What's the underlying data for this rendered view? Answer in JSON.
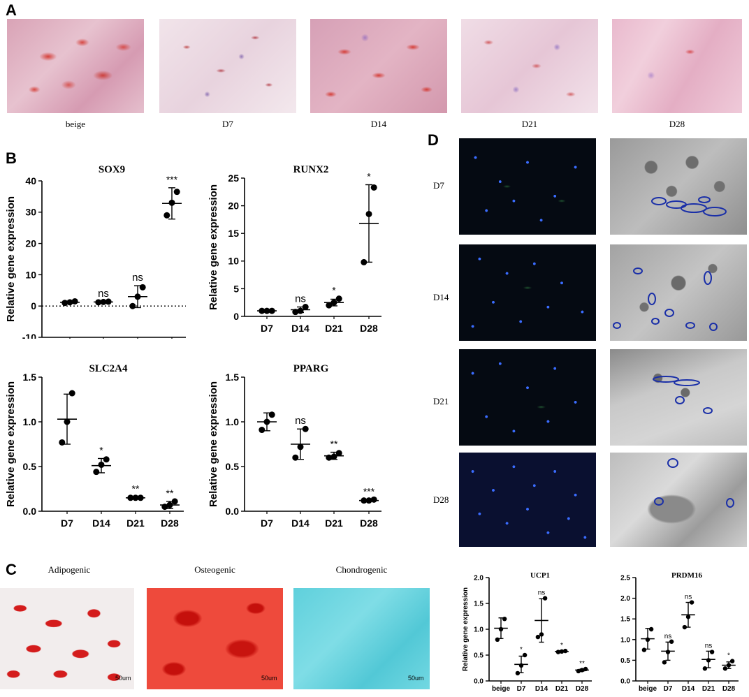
{
  "panels": {
    "a": "A",
    "b": "B",
    "c": "C",
    "d": "D"
  },
  "panel_a": {
    "captions": [
      "beige",
      "D7",
      "D14",
      "D21",
      "D28"
    ]
  },
  "panel_c": {
    "captions": [
      "Adipogenic",
      "Osteogenic",
      "Chondrogenic"
    ],
    "scale_labels": [
      "50um",
      "50um",
      "50um"
    ]
  },
  "panel_d": {
    "rows": [
      "D7",
      "D14",
      "D21",
      "D28"
    ]
  },
  "chart_data": [
    {
      "id": "sox9",
      "type": "scatter",
      "title": "SOX9",
      "ylabel": "Relative gene  expression",
      "categories": [
        "D7",
        "D14",
        "D21",
        "D28"
      ],
      "ylim": [
        -10,
        40
      ],
      "yticks": [
        -10,
        0,
        10,
        20,
        30,
        40
      ],
      "dotted_zero": true,
      "points": [
        [
          1.0,
          1.2,
          1.5
        ],
        [
          1.2,
          1.3,
          1.4
        ],
        [
          0.0,
          3.0,
          6.0
        ],
        [
          29.0,
          33.0,
          36.5
        ]
      ],
      "mean": [
        1.2,
        1.3,
        3.0,
        32.8
      ],
      "err": [
        0.3,
        0.1,
        3.5,
        5.0
      ],
      "sig": [
        "",
        "ns",
        "ns",
        "***"
      ]
    },
    {
      "id": "runx2",
      "type": "scatter",
      "title": "RUNX2",
      "ylabel": "Relative gene  expression",
      "categories": [
        "D7",
        "D14",
        "D21",
        "D28"
      ],
      "ylim": [
        0,
        25
      ],
      "yticks": [
        0,
        5,
        10,
        15,
        20,
        25
      ],
      "points": [
        [
          1.0,
          1.0,
          1.0
        ],
        [
          0.8,
          1.0,
          1.7
        ],
        [
          2.0,
          2.5,
          3.2
        ],
        [
          9.8,
          18.5,
          23.3
        ]
      ],
      "mean": [
        1.0,
        1.2,
        2.5,
        16.8
      ],
      "err": [
        0.1,
        0.5,
        0.6,
        7.0
      ],
      "sig": [
        "",
        "ns",
        "*",
        "*"
      ]
    },
    {
      "id": "slc2a4",
      "type": "scatter",
      "title": "SLC2A4",
      "ylabel": "Relative gene  expression",
      "categories": [
        "D7",
        "D14",
        "D21",
        "D28"
      ],
      "ylim": [
        0,
        1.5
      ],
      "yticks": [
        0.0,
        0.5,
        1.0,
        1.5
      ],
      "points": [
        [
          0.77,
          1.0,
          1.32
        ],
        [
          0.44,
          0.52,
          0.58
        ],
        [
          0.15,
          0.15,
          0.15
        ],
        [
          0.05,
          0.07,
          0.11
        ]
      ],
      "mean": [
        1.03,
        0.51,
        0.15,
        0.07
      ],
      "err": [
        0.28,
        0.08,
        0.01,
        0.04
      ],
      "sig": [
        "",
        "*",
        "**",
        "**"
      ]
    },
    {
      "id": "pparg",
      "type": "scatter",
      "title": "PPARG",
      "ylabel": "Relative gene  expression",
      "categories": [
        "D7",
        "D14",
        "D21",
        "D28"
      ],
      "ylim": [
        0,
        1.5
      ],
      "yticks": [
        0.0,
        0.5,
        1.0,
        1.5
      ],
      "points": [
        [
          0.91,
          1.0,
          1.08
        ],
        [
          0.6,
          0.72,
          0.92
        ],
        [
          0.6,
          0.61,
          0.65
        ],
        [
          0.12,
          0.12,
          0.13
        ]
      ],
      "mean": [
        1.0,
        0.75,
        0.62,
        0.12
      ],
      "err": [
        0.1,
        0.17,
        0.04,
        0.01
      ],
      "sig": [
        "",
        "ns",
        "**",
        "***"
      ]
    },
    {
      "id": "ucp1",
      "type": "scatter",
      "title": "UCP1",
      "ylabel": "Relative gene expression",
      "categories": [
        "beige",
        "D7",
        "D14",
        "D21",
        "D28"
      ],
      "ylim": [
        0,
        2.0
      ],
      "yticks": [
        0.0,
        0.5,
        1.0,
        1.5,
        2.0
      ],
      "points": [
        [
          0.8,
          1.0,
          1.2
        ],
        [
          0.15,
          0.3,
          0.5
        ],
        [
          0.85,
          0.9,
          1.6
        ],
        [
          0.56,
          0.57,
          0.58
        ],
        [
          0.19,
          0.21,
          0.23
        ]
      ],
      "mean": [
        1.02,
        0.32,
        1.17,
        0.57,
        0.21
      ],
      "err": [
        0.2,
        0.16,
        0.42,
        0.01,
        0.02
      ],
      "sig": [
        "",
        "*",
        "ns",
        "*",
        "**"
      ]
    },
    {
      "id": "prdm16",
      "type": "scatter",
      "title": "PRDM16",
      "ylabel": "",
      "categories": [
        "beige",
        "D7",
        "D14",
        "D21",
        "D28"
      ],
      "ylim": [
        0,
        2.5
      ],
      "yticks": [
        0.0,
        0.5,
        1.0,
        1.5,
        2.0,
        2.5
      ],
      "points": [
        [
          0.75,
          1.0,
          1.25
        ],
        [
          0.45,
          0.7,
          0.95
        ],
        [
          1.3,
          1.55,
          1.9
        ],
        [
          0.3,
          0.5,
          0.7
        ],
        [
          0.3,
          0.38,
          0.48
        ]
      ],
      "mean": [
        1.02,
        0.72,
        1.6,
        0.52,
        0.38
      ],
      "err": [
        0.25,
        0.22,
        0.3,
        0.2,
        0.08
      ],
      "sig": [
        "",
        "ns",
        "ns",
        "ns",
        "*"
      ]
    }
  ]
}
